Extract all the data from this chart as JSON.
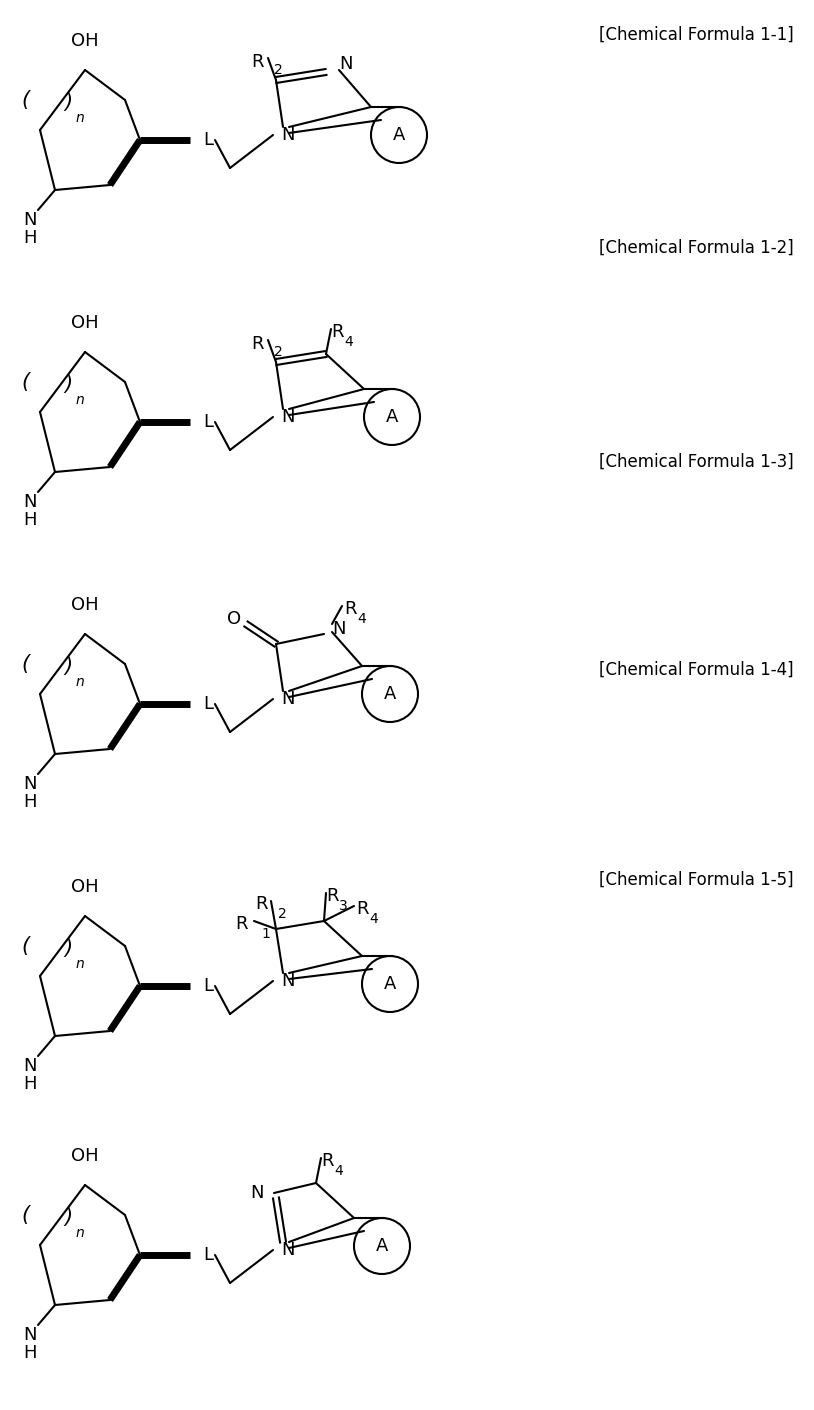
{
  "bg_color": "#ffffff",
  "fig_width": 8.14,
  "fig_height": 14.1,
  "labels": [
    "[Chemical Formula 1-1]",
    "[Chemical Formula 1-2]",
    "[Chemical Formula 1-3]",
    "[Chemical Formula 1-4]",
    "[Chemical Formula 1-5]"
  ],
  "label_fontsize": 12,
  "struct_fontsize": 13,
  "sub_fontsize": 10,
  "lw": 1.5,
  "bold_lw": 5.0
}
